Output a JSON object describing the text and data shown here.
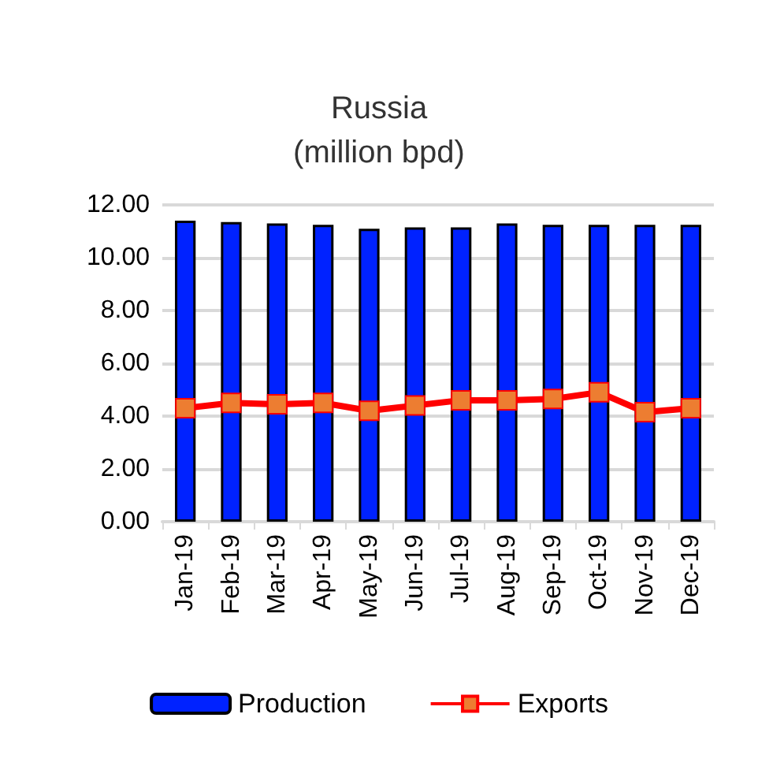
{
  "chart_data": {
    "type": "bar",
    "title": "Russia\n(million bpd)",
    "categories": [
      "Jan-19",
      "Feb-19",
      "Mar-19",
      "Apr-19",
      "May-19",
      "Jun-19",
      "Jul-19",
      "Aug-19",
      "Sep-19",
      "Oct-19",
      "Nov-19",
      "Dec-19"
    ],
    "series": [
      {
        "name": "Production",
        "color": "#0022ff",
        "values": [
          11.4,
          11.35,
          11.3,
          11.25,
          11.1,
          11.15,
          11.15,
          11.3,
          11.25,
          11.25,
          11.25,
          11.25
        ]
      },
      {
        "name": "Exports",
        "type": "line",
        "color": "#ff0000",
        "values": [
          4.3,
          4.5,
          4.45,
          4.5,
          4.2,
          4.4,
          4.6,
          4.6,
          4.65,
          4.9,
          4.15,
          4.3
        ]
      }
    ],
    "ylim": [
      0,
      12
    ],
    "yticks": [
      {
        "value": 0,
        "label": "0.00"
      },
      {
        "value": 2,
        "label": "2.00"
      },
      {
        "value": 4,
        "label": "4.00"
      },
      {
        "value": 6,
        "label": "6.00"
      },
      {
        "value": 8,
        "label": "8.00"
      },
      {
        "value": 10,
        "label": "10.00"
      },
      {
        "value": 12,
        "label": "12.00"
      }
    ],
    "grid": "y",
    "legend": "bottom",
    "marker": "square"
  }
}
